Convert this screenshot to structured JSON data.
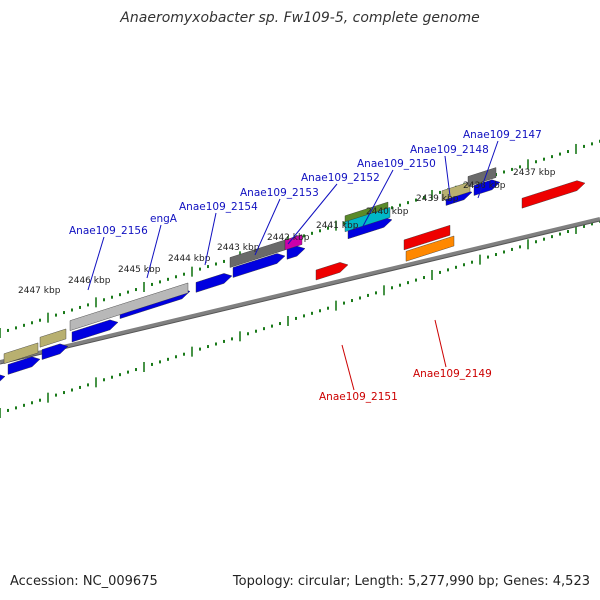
{
  "title": "Anaeromyxobacter sp. Fw109-5, complete genome",
  "footer": {
    "accession": "Accession: NC_009675",
    "summary": "Topology: circular; Length: 5,277,990 bp; Genes: 4,523"
  },
  "colors": {
    "forward_label": "#1010c0",
    "reverse_label": "#cc0000",
    "tick": "#1a7a1a",
    "backbone": "#808080"
  },
  "ruler": [
    {
      "label": "2437 kbp"
    },
    {
      "label": "2438 kbp"
    },
    {
      "label": "2439 kbp"
    },
    {
      "label": "2440 kbp"
    },
    {
      "label": "2441 kbp"
    },
    {
      "label": "2442 kbp"
    },
    {
      "label": "2443 kbp"
    },
    {
      "label": "2444 kbp"
    },
    {
      "label": "2445 kbp"
    },
    {
      "label": "2446 kbp"
    },
    {
      "label": "2447 kbp"
    }
  ],
  "gene_labels": [
    {
      "text": "Anae109_2147",
      "strand": "forward"
    },
    {
      "text": "Anae109_2148",
      "strand": "forward"
    },
    {
      "text": "Anae109_2150",
      "strand": "forward"
    },
    {
      "text": "Anae109_2152",
      "strand": "forward"
    },
    {
      "text": "Anae109_2153",
      "strand": "forward"
    },
    {
      "text": "Anae109_2154",
      "strand": "forward"
    },
    {
      "text": "engA",
      "strand": "forward"
    },
    {
      "text": "Anae109_2156",
      "strand": "forward"
    },
    {
      "text": "Anae109_2149",
      "strand": "reverse"
    },
    {
      "text": "Anae109_2151",
      "strand": "reverse"
    }
  ]
}
